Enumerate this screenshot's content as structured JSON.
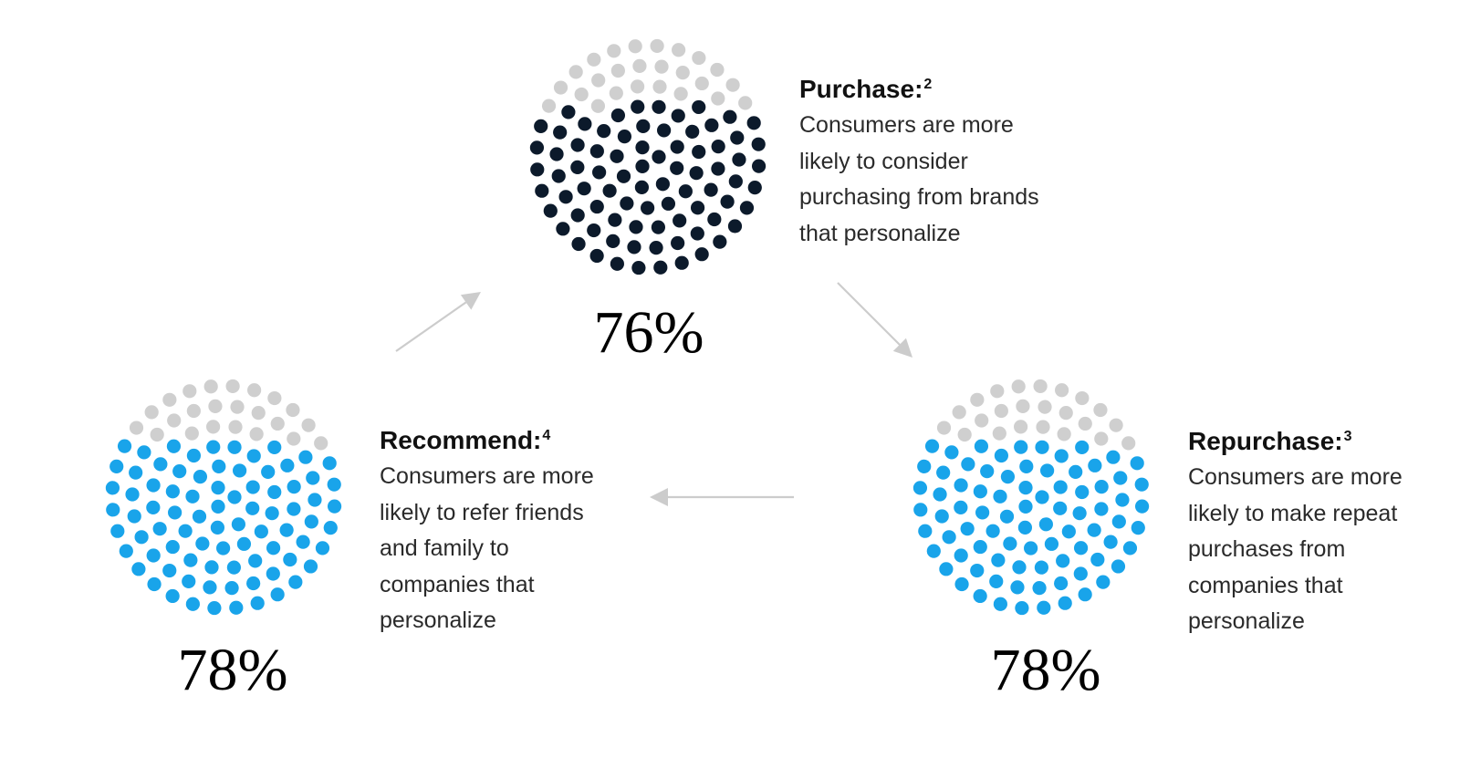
{
  "chart_data": {
    "type": "dot-matrix",
    "title": "",
    "colors": {
      "empty": "#cfcfcf",
      "purchase": "#0c1a2b",
      "repurchase": "#19a4ea",
      "recommend": "#19a4ea",
      "arrow": "#cccccc"
    },
    "items": [
      {
        "key": "purchase",
        "heading": "Purchase:",
        "footnote": "2",
        "value": 76,
        "value_label": "76%",
        "lines": [
          "Consumers are more",
          "likely to consider",
          "purchasing from brands",
          "that personalize"
        ]
      },
      {
        "key": "repurchase",
        "heading": "Repurchase:",
        "footnote": "3",
        "value": 78,
        "value_label": "78%",
        "lines": [
          "Consumers are more",
          "likely to make repeat",
          "purchases from",
          "companies that",
          "personalize"
        ]
      },
      {
        "key": "recommend",
        "heading": "Recommend:",
        "footnote": "4",
        "value": 78,
        "value_label": "78%",
        "lines": [
          "Consumers are more",
          "likely to refer friends",
          "and family to",
          "companies that",
          "personalize"
        ]
      }
    ],
    "flow": [
      "recommend",
      "purchase",
      "repurchase",
      "recommend"
    ]
  }
}
